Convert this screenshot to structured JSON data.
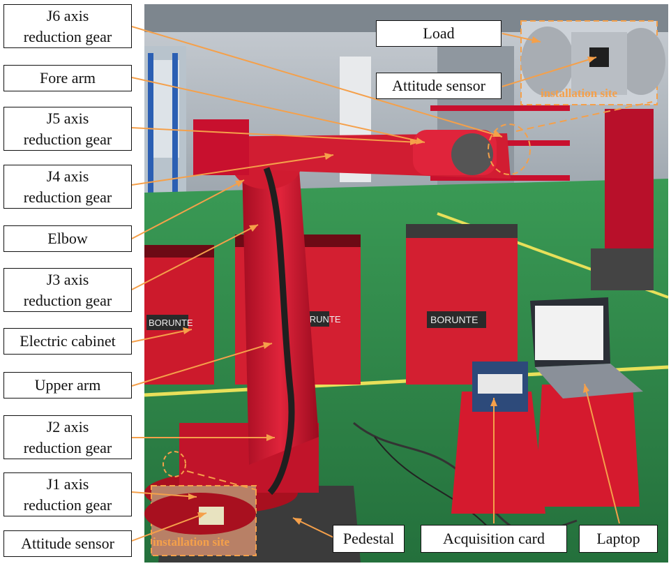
{
  "labels": {
    "j6": "J6 axis\nreduction gear",
    "fore_arm": "Fore arm",
    "j5": "J5 axis\nreduction gear",
    "j4": "J4 axis\nreduction gear",
    "elbow": "Elbow",
    "j3": "J3 axis\nreduction gear",
    "electric_cabinet": "Electric cabinet",
    "upper_arm": "Upper arm",
    "j2": "J2 axis\nreduction gear",
    "j1": "J1 axis\nreduction gear",
    "attitude_sensor_base": "Attitude sensor",
    "load": "Load",
    "attitude_sensor_top": "Attitude sensor",
    "pedestal": "Pedestal",
    "acquisition_card": "Acquisition card",
    "laptop": "Laptop"
  },
  "insets": {
    "top_site": "installation site",
    "bottom_site": "installation site"
  },
  "photo_text": {
    "cabinet_brand_1": "BORUNTE",
    "cabinet_brand_2": "BORUNTE",
    "cabinet_brand_3": "BORUNTE"
  },
  "colors": {
    "leader": "#f5a04a",
    "robot_red": "#c8102e",
    "floor_green": "#2f8a4a"
  }
}
